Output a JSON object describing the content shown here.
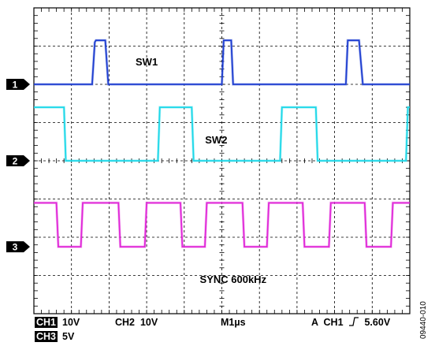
{
  "chart_data": {
    "type": "line",
    "title": "",
    "x_unit": "divisions (1 µs/div)",
    "xlim": [
      0,
      10
    ],
    "ylim": [
      -4,
      4
    ],
    "grid": "10x8 divisions, dashed",
    "series": [
      {
        "name": "SW1",
        "channel": "1",
        "color": "#1f3fd0",
        "points": [
          [
            0,
            0
          ],
          [
            1.55,
            0
          ],
          [
            1.62,
            1.1
          ],
          [
            1.65,
            1.15
          ],
          [
            1.9,
            1.15
          ],
          [
            1.98,
            0
          ],
          [
            5.0,
            0
          ],
          [
            5.05,
            1.15
          ],
          [
            5.25,
            1.15
          ],
          [
            5.3,
            0
          ],
          [
            8.3,
            0
          ],
          [
            8.35,
            1.15
          ],
          [
            8.65,
            1.15
          ],
          [
            8.75,
            0
          ],
          [
            10,
            0
          ]
        ]
      },
      {
        "name": "SW2",
        "channel": "2",
        "color": "#1ed8e8",
        "points": [
          [
            0,
            1.4
          ],
          [
            0.8,
            1.4
          ],
          [
            0.85,
            0
          ],
          [
            3.3,
            0
          ],
          [
            3.35,
            1.4
          ],
          [
            4.2,
            1.4
          ],
          [
            4.25,
            0
          ],
          [
            6.55,
            0
          ],
          [
            6.6,
            1.4
          ],
          [
            7.5,
            1.4
          ],
          [
            7.55,
            0
          ],
          [
            9.9,
            0
          ],
          [
            9.95,
            1.4
          ],
          [
            10,
            1.4
          ]
        ]
      },
      {
        "name": "SYNC 600kHz",
        "channel": "3",
        "color": "#e028d8",
        "points": [
          [
            0,
            1.15
          ],
          [
            0.6,
            1.15
          ],
          [
            0.65,
            0
          ],
          [
            1.25,
            0
          ],
          [
            1.3,
            1.15
          ],
          [
            2.25,
            1.15
          ],
          [
            2.3,
            0
          ],
          [
            2.95,
            0
          ],
          [
            3.0,
            1.15
          ],
          [
            3.9,
            1.15
          ],
          [
            3.95,
            0
          ],
          [
            4.55,
            0
          ],
          [
            4.6,
            1.15
          ],
          [
            5.55,
            1.15
          ],
          [
            5.6,
            0
          ],
          [
            6.2,
            0
          ],
          [
            6.25,
            1.15
          ],
          [
            7.15,
            1.15
          ],
          [
            7.2,
            0
          ],
          [
            7.85,
            0
          ],
          [
            7.9,
            1.15
          ],
          [
            8.8,
            1.15
          ],
          [
            8.85,
            0
          ],
          [
            9.5,
            0
          ],
          [
            9.55,
            1.15
          ],
          [
            10,
            1.15
          ]
        ]
      }
    ],
    "ground_markers": [
      {
        "label": "1",
        "level": 2.0
      },
      {
        "label": "2",
        "level": 0.0
      },
      {
        "label": "3",
        "level": -2.25
      }
    ],
    "annotations": [
      {
        "text": "SW1",
        "x": 3.0,
        "y": 2.5
      },
      {
        "text": "SW2",
        "x": 4.85,
        "y": 0.45
      },
      {
        "text": "SYNC 600kHz",
        "x": 5.3,
        "y": -3.2
      }
    ]
  },
  "status_bar": {
    "ch1_badge": "CH1",
    "ch1_scale": "10V",
    "ch2": "CH2  10V",
    "timebase": "M1µs",
    "trigger_prefix": "A  CH1",
    "trigger_level": "5.60V",
    "ch3_badge": "CH3",
    "ch3_scale": "5V"
  },
  "figure_id": "09440-010"
}
